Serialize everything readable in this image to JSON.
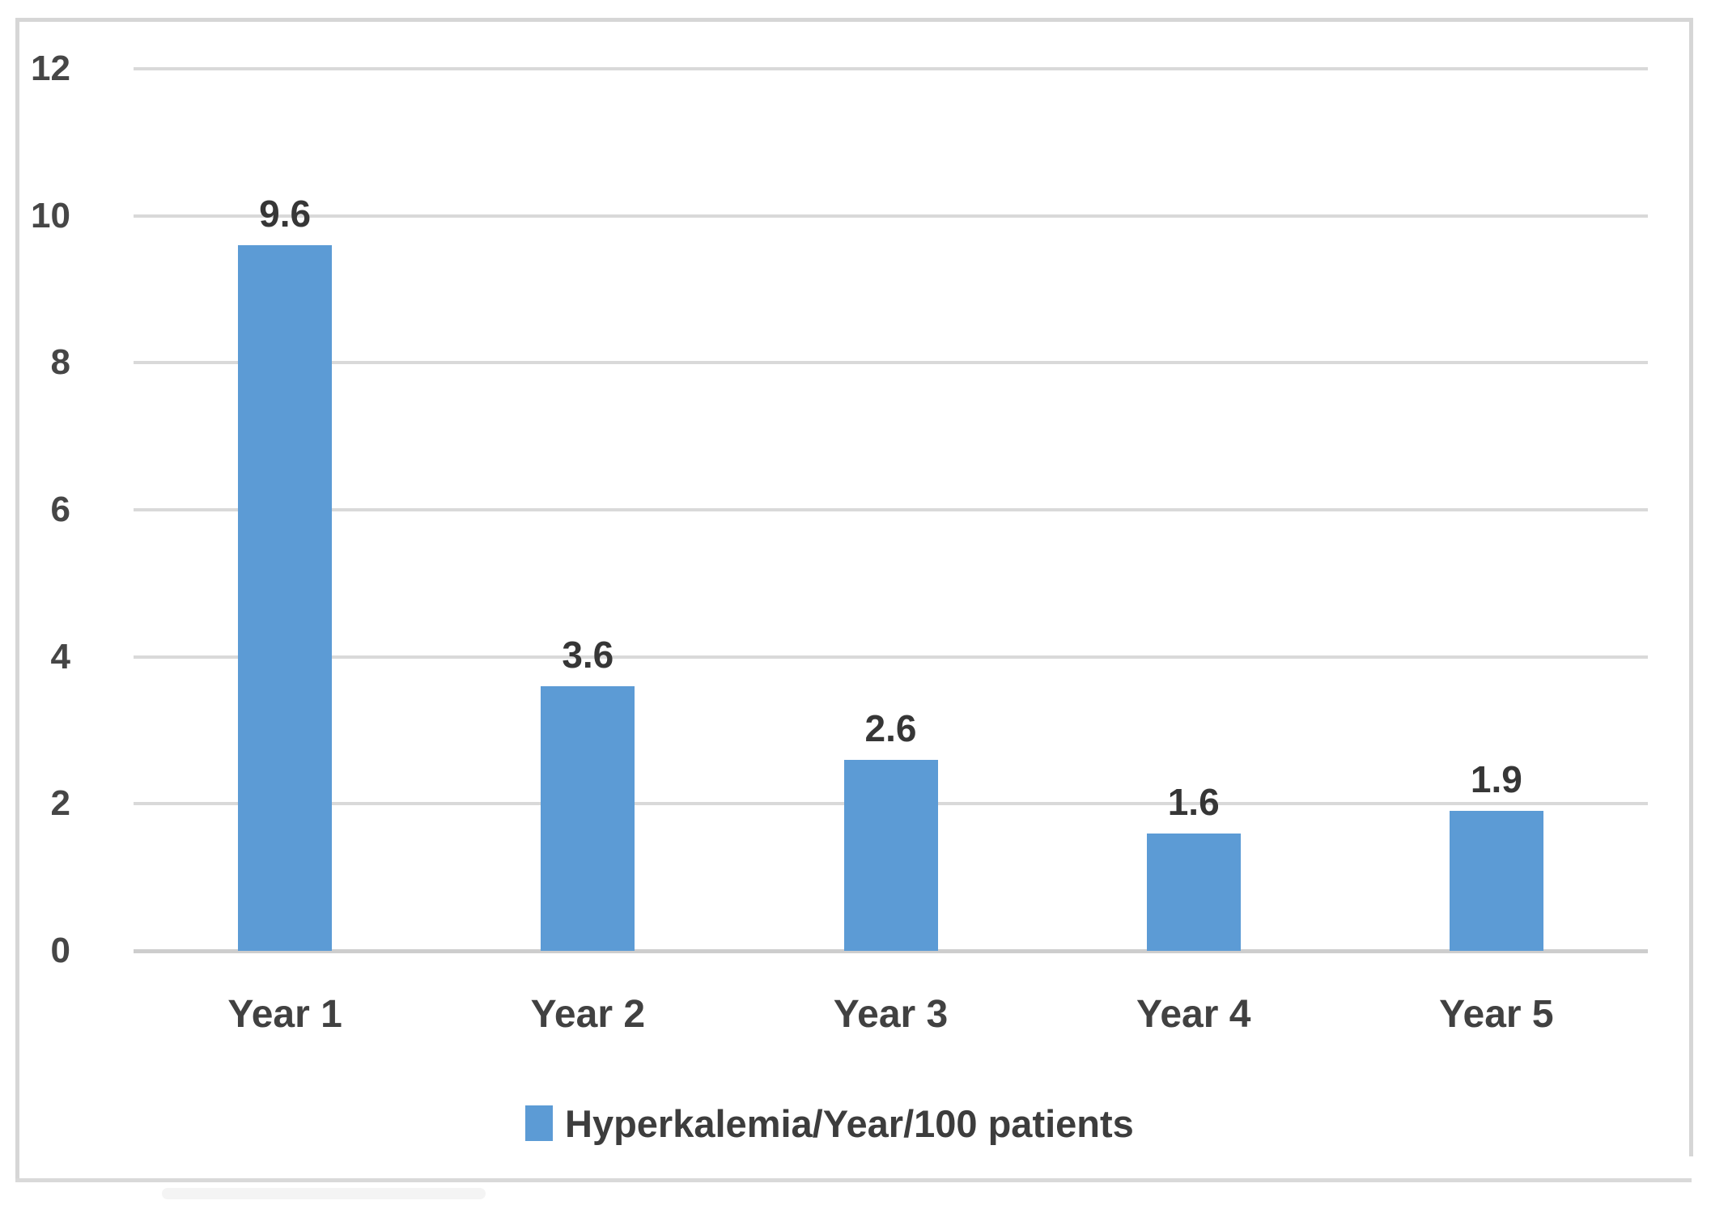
{
  "chart_data": {
    "type": "bar",
    "title": "",
    "categories": [
      "Year 1",
      "Year 2",
      "Year 3",
      "Year 4",
      "Year 5"
    ],
    "series": [
      {
        "name": "Hyperkalemia/Year/100 patients",
        "values": [
          9.6,
          3.6,
          2.6,
          1.6,
          1.9
        ]
      }
    ],
    "values": [
      9.6,
      3.6,
      2.6,
      1.6,
      1.9
    ],
    "bar_labels": [
      "9.6",
      "3.6",
      "2.6",
      "1.6",
      "1.9"
    ],
    "yticks": [
      12,
      10,
      8,
      6,
      4,
      2,
      0
    ],
    "ylim": [
      0,
      12
    ],
    "xlabel": "",
    "ylabel": "",
    "grid": "horizontal",
    "legend_position": "bottom",
    "legend": "Hyperkalemia/Year/100 patients"
  },
  "colors": {
    "bar": "#5C9BD5",
    "gridline": "#d9d9d9",
    "axis_line": "#cdcdcd",
    "frame_border": "#d6d6d6",
    "tick_text": "#464646",
    "label_text": "#363636",
    "background": "#ffffff"
  }
}
